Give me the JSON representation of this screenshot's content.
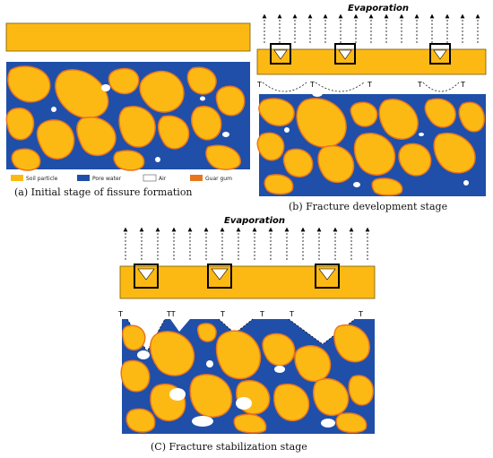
{
  "colors": {
    "soil": "#FDB913",
    "water": "#1F4FA8",
    "air": "#FFFFFF",
    "guar": "#E8761E",
    "crust": "#FDB913"
  },
  "legend": {
    "soil": "Soil particle",
    "water": "Pore water",
    "air": "Air",
    "guar": "Guar gum"
  },
  "panel_a": {
    "caption": "(a) Initial stage of fissure formation"
  },
  "panel_b": {
    "caption": "(b) Fracture development stage",
    "evaporation": "Evaporation",
    "tension_labels": [
      "T",
      "T",
      "T",
      "T",
      "T"
    ]
  },
  "panel_c": {
    "caption": "(C) Fracture stabilization stage",
    "evaporation": "Evaporation",
    "tension_labels": [
      "T",
      "TT",
      "T",
      "T",
      "T",
      "T"
    ]
  }
}
